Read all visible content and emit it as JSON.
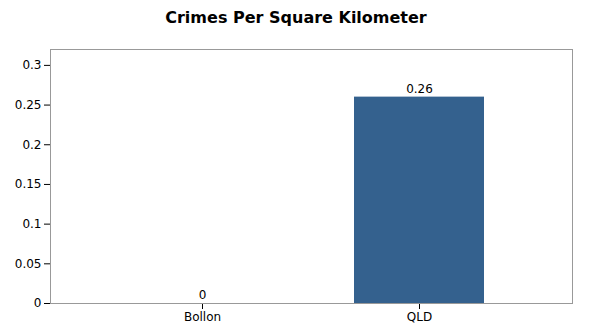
{
  "chart_data": {
    "type": "bar",
    "title": "Crimes Per Square Kilometer",
    "categories": [
      "Bollon",
      "QLD"
    ],
    "values": [
      0,
      0.26
    ],
    "color": "#34618e",
    "ylim": [
      0,
      0.32
    ],
    "yticks": [
      0,
      0.05,
      0.1,
      0.15,
      0.2,
      0.25,
      0.3
    ],
    "grid": false,
    "data_labels": true
  }
}
